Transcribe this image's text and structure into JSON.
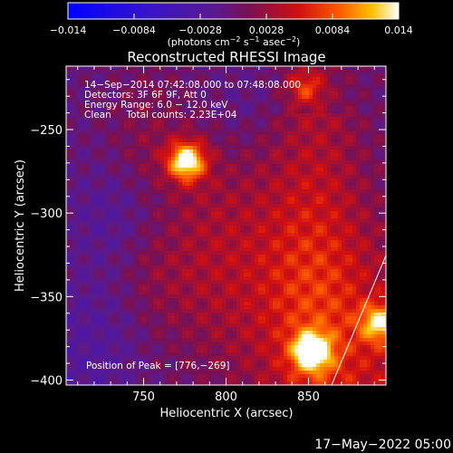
{
  "chart_data": {
    "type": "heatmap",
    "title": "Reconstructed RHESSI Image",
    "xlabel": "Heliocentric X (arcsec)",
    "ylabel": "Heliocentric Y (arcsec)",
    "xlim": [
      703,
      897
    ],
    "ylim": [
      -403,
      -212
    ],
    "xticks": [
      750,
      800,
      850
    ],
    "yticks": [
      -250,
      -300,
      -350,
      -400
    ],
    "colorbar": {
      "range": [
        -0.014,
        0.014
      ],
      "ticks": [
        "−0.014",
        "−0.0084",
        "−0.0028",
        "0.0028",
        "0.0084",
        "0.014"
      ],
      "tick_values": [
        -0.014,
        -0.0084,
        -0.0028,
        0.0028,
        0.0084,
        0.014
      ],
      "unit_main": "(photons cm",
      "unit_exp1": "−2",
      "unit_mid1": " s",
      "unit_exp2": "−1",
      "unit_mid2": " asec",
      "unit_exp3": "−2",
      "unit_end": ")"
    },
    "annotations": [
      "14−Sep−2014 07:42:08.000 to 07:48:08.000",
      "Detectors: 3F 6F 9F, Att 0",
      "Energy Range: 6.0 − 12.0 keV",
      "Clean     Total counts: 2.23E+04"
    ],
    "peak_label": "Position of Peak = [776,−269]",
    "peak": [
      776,
      -269
    ],
    "sources": [
      {
        "x": 776,
        "y": -269,
        "value": 0.014
      },
      {
        "x": 852,
        "y": -383,
        "value": 0.013
      },
      {
        "x": 893,
        "y": -366,
        "value": 0.0095
      },
      {
        "x": 848,
        "y": -225,
        "value": 0.006
      }
    ],
    "colormap": "blue-purple-red-yellow-white"
  },
  "footer_date": "17−May−2022 05:00"
}
